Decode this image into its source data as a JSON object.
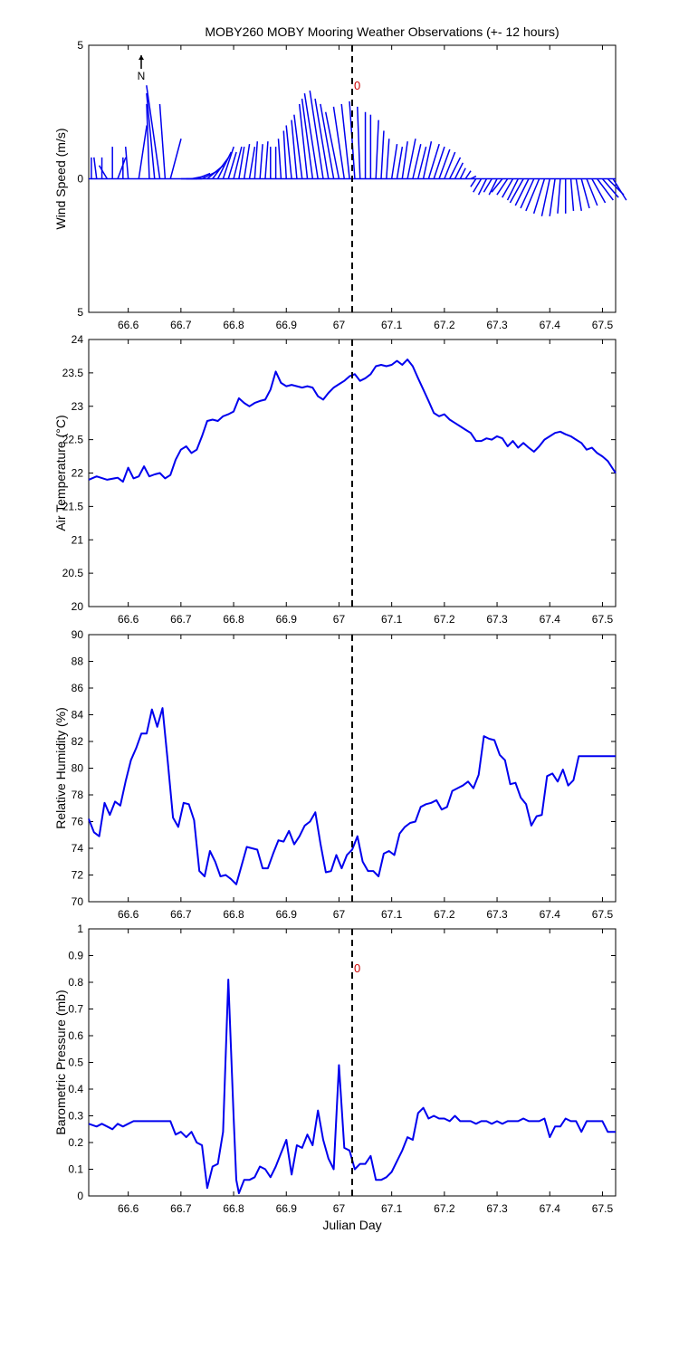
{
  "title": "MOBY260 MOBY Mooring Weather Observations (+- 12 hours)",
  "colors": {
    "line": "#0000ee",
    "marker": "#cc0000",
    "axis": "#000000"
  },
  "chart_data": [
    {
      "type": "line",
      "ylabel": "Wind Speed (m/s)",
      "xlim": [
        66.525,
        67.525
      ],
      "ylim": [
        -5,
        5
      ],
      "y_tick_labels": [
        "5",
        "0",
        "5"
      ],
      "x_ticks": [
        66.6,
        66.7,
        66.8,
        66.9,
        67,
        67.1,
        67.2,
        67.3,
        67.4,
        67.5
      ],
      "north_label": "N",
      "marker_label": "0",
      "marker_x": 67.025,
      "series": [
        {
          "x": [
            66.53,
            66.54,
            66.55,
            66.56,
            66.57,
            66.58,
            66.59,
            66.6,
            66.61,
            66.62,
            66.63,
            66.64,
            66.65,
            66.66,
            66.67,
            66.68,
            66.69,
            66.7,
            66.71,
            66.72,
            66.73,
            66.74,
            66.75,
            66.76,
            66.77,
            66.78,
            66.79,
            66.8,
            66.81,
            66.82,
            66.83,
            66.84,
            66.85,
            66.86,
            66.87,
            66.88,
            66.89,
            66.9,
            66.91,
            66.92,
            66.93,
            66.94,
            66.95,
            66.96,
            66.97,
            66.98,
            66.99,
            67.0,
            67.01,
            67.02,
            67.03,
            67.04,
            67.05,
            67.06,
            67.07,
            67.08,
            67.09,
            67.1,
            67.11,
            67.12,
            67.13,
            67.14,
            67.15,
            67.16,
            67.17,
            67.18,
            67.19,
            67.2,
            67.21,
            67.22,
            67.23,
            67.24,
            67.25,
            67.26,
            67.27,
            67.28,
            67.29,
            67.3,
            67.31,
            67.32,
            67.33,
            67.34,
            67.35,
            67.36,
            67.37,
            67.38,
            67.39,
            67.4,
            67.41,
            67.42,
            67.43,
            67.44,
            67.45,
            67.46,
            67.47,
            67.48,
            67.49,
            67.5,
            67.51,
            67.52
          ],
          "u": [
            0.0,
            -0.1,
            0.0,
            -0.3,
            0.0,
            0.3,
            0.0,
            -0.1,
            0.0,
            0.3,
            0.0,
            -0.1,
            -0.3,
            -0.5,
            -0.2,
            0.4,
            0.0,
            0.6,
            0.6,
            0.5,
            0.5,
            0.6,
            0.6,
            0.6,
            0.5,
            0.4,
            0.3,
            0.3,
            0.2,
            0.2,
            0.2,
            0.1,
            0.1,
            0.1,
            0.0,
            0.0,
            -0.1,
            -0.1,
            -0.2,
            -0.2,
            -0.3,
            -0.3,
            -0.4,
            -0.5,
            -0.5,
            -0.5,
            -0.5,
            -0.5,
            -0.4,
            -0.3,
            -0.2,
            -0.1,
            0.0,
            0.0,
            0.1,
            0.1,
            0.1,
            0.2,
            0.2,
            0.2,
            0.3,
            0.3,
            0.3,
            0.3,
            0.4,
            0.4,
            0.4,
            0.4,
            0.4,
            0.3,
            0.2,
            0.2,
            0.2,
            -0.2,
            -0.3,
            -0.3,
            -0.3,
            -0.3,
            -0.4,
            -0.4,
            -0.4,
            -0.4,
            -0.5,
            -0.5,
            -0.5,
            -0.5,
            -0.4,
            -0.3,
            -0.2,
            -0.1,
            0.0,
            0.1,
            0.2,
            0.3,
            0.4,
            0.5,
            0.6,
            0.6,
            0.6,
            0.5
          ],
          "v": [
            0.8,
            0.8,
            0.8,
            0.5,
            1.2,
            0.8,
            0.8,
            1.2,
            0.0,
            2.0,
            0.0,
            2.8,
            3.2,
            3.5,
            2.8,
            1.5,
            0.0,
            0.0,
            0.0,
            0.1,
            0.2,
            0.3,
            0.5,
            0.8,
            1.0,
            1.2,
            1.0,
            1.2,
            1.2,
            1.3,
            1.2,
            1.4,
            1.3,
            1.4,
            1.2,
            1.2,
            1.5,
            1.8,
            2.0,
            2.2,
            2.4,
            2.8,
            3.0,
            3.2,
            3.3,
            3.0,
            2.8,
            2.5,
            2.7,
            2.8,
            2.9,
            2.7,
            2.5,
            2.4,
            2.2,
            1.8,
            1.5,
            1.3,
            1.2,
            1.4,
            1.5,
            1.3,
            1.2,
            1.4,
            1.3,
            1.2,
            1.1,
            1.0,
            0.8,
            0.6,
            0.4,
            0.3,
            0.1,
            -0.3,
            -0.5,
            -0.6,
            -0.5,
            -0.6,
            -0.5,
            -0.6,
            -0.7,
            -0.8,
            -0.9,
            -1.0,
            -1.1,
            -1.2,
            -1.3,
            -1.4,
            -1.4,
            -1.3,
            -1.3,
            -1.2,
            -1.2,
            -1.1,
            -1.0,
            -0.9,
            -0.8,
            -0.7,
            -0.6,
            -0.8
          ]
        }
      ]
    },
    {
      "type": "line",
      "ylabel": "Air Temperature (°C)",
      "xlim": [
        66.525,
        67.525
      ],
      "ylim": [
        20,
        24
      ],
      "y_ticks": [
        "20",
        "20.5",
        "21",
        "21.5",
        "22",
        "22.5",
        "23",
        "23.5",
        "24"
      ],
      "x_ticks": [
        66.6,
        66.7,
        66.8,
        66.9,
        67,
        67.1,
        67.2,
        67.3,
        67.4,
        67.5
      ],
      "marker_x": 67.025,
      "series": [
        {
          "x": [
            66.525,
            66.54,
            66.56,
            66.58,
            66.59,
            66.6,
            66.61,
            66.62,
            66.63,
            66.64,
            66.65,
            66.66,
            66.67,
            66.68,
            66.69,
            66.7,
            66.71,
            66.72,
            66.73,
            66.74,
            66.75,
            66.76,
            66.77,
            66.78,
            66.79,
            66.8,
            66.81,
            66.82,
            66.83,
            66.84,
            66.85,
            66.86,
            66.87,
            66.88,
            66.89,
            66.9,
            66.91,
            66.92,
            66.93,
            66.94,
            66.95,
            66.96,
            66.97,
            66.98,
            66.99,
            67.0,
            67.01,
            67.02,
            67.03,
            67.04,
            67.05,
            67.06,
            67.07,
            67.08,
            67.09,
            67.1,
            67.11,
            67.12,
            67.13,
            67.14,
            67.15,
            67.16,
            67.17,
            67.18,
            67.19,
            67.2,
            67.21,
            67.22,
            67.23,
            67.24,
            67.25,
            67.26,
            67.27,
            67.28,
            67.29,
            67.3,
            67.31,
            67.32,
            67.33,
            67.34,
            67.35,
            67.36,
            67.37,
            67.38,
            67.39,
            67.4,
            67.41,
            67.42,
            67.43,
            67.44,
            67.45,
            67.46,
            67.47,
            67.48,
            67.49,
            67.5,
            67.51,
            67.525
          ],
          "y": [
            21.9,
            21.95,
            21.9,
            21.93,
            21.87,
            22.08,
            21.92,
            21.95,
            22.1,
            21.95,
            21.98,
            22.0,
            21.92,
            21.97,
            22.2,
            22.35,
            22.4,
            22.3,
            22.35,
            22.55,
            22.78,
            22.8,
            22.78,
            22.85,
            22.88,
            22.92,
            23.12,
            23.05,
            23.0,
            23.05,
            23.08,
            23.1,
            23.25,
            23.52,
            23.35,
            23.3,
            23.32,
            23.3,
            23.28,
            23.3,
            23.28,
            23.15,
            23.1,
            23.2,
            23.28,
            23.33,
            23.38,
            23.45,
            23.48,
            23.38,
            23.42,
            23.48,
            23.6,
            23.62,
            23.6,
            23.62,
            23.68,
            23.62,
            23.7,
            23.6,
            23.42,
            23.25,
            23.08,
            22.9,
            22.85,
            22.88,
            22.8,
            22.75,
            22.7,
            22.65,
            22.6,
            22.48,
            22.48,
            22.52,
            22.5,
            22.55,
            22.52,
            22.4,
            22.48,
            22.38,
            22.45,
            22.38,
            22.32,
            22.4,
            22.5,
            22.55,
            22.6,
            22.62,
            22.58,
            22.55,
            22.5,
            22.45,
            22.35,
            22.38,
            22.3,
            22.25,
            22.18,
            22.0
          ]
        }
      ]
    },
    {
      "type": "line",
      "ylabel": "Relative Humidity (%)",
      "xlim": [
        66.525,
        67.525
      ],
      "ylim": [
        70,
        90
      ],
      "y_ticks": [
        "70",
        "72",
        "74",
        "76",
        "78",
        "80",
        "82",
        "84",
        "86",
        "88",
        "90"
      ],
      "x_ticks": [
        66.6,
        66.7,
        66.8,
        66.9,
        67,
        67.1,
        67.2,
        67.3,
        67.4,
        67.5
      ],
      "marker_x": 67.025,
      "series": [
        {
          "x": [
            66.525,
            66.535,
            66.545,
            66.555,
            66.565,
            66.575,
            66.585,
            66.595,
            66.605,
            66.615,
            66.625,
            66.635,
            66.645,
            66.655,
            66.665,
            66.675,
            66.685,
            66.695,
            66.705,
            66.715,
            66.725,
            66.735,
            66.745,
            66.755,
            66.765,
            66.775,
            66.785,
            66.795,
            66.805,
            66.815,
            66.825,
            66.835,
            66.845,
            66.855,
            66.865,
            66.875,
            66.885,
            66.895,
            66.905,
            66.915,
            66.925,
            66.935,
            66.945,
            66.955,
            66.965,
            66.975,
            66.985,
            66.995,
            67.005,
            67.015,
            67.025,
            67.035,
            67.045,
            67.055,
            67.065,
            67.075,
            67.085,
            67.095,
            67.105,
            67.115,
            67.125,
            67.135,
            67.145,
            67.155,
            67.165,
            67.175,
            67.185,
            67.195,
            67.205,
            67.215,
            67.225,
            67.235,
            67.245,
            67.255,
            67.265,
            67.275,
            67.285,
            67.295,
            67.305,
            67.315,
            67.325,
            67.335,
            67.345,
            67.355,
            67.365,
            67.375,
            67.385,
            67.395,
            67.405,
            67.415,
            67.425,
            67.435,
            67.445,
            67.455,
            67.465,
            67.475,
            67.485,
            67.495,
            67.505,
            67.515,
            67.525
          ],
          "y": [
            76.2,
            75.2,
            74.9,
            77.4,
            76.5,
            77.5,
            77.2,
            79.0,
            80.6,
            81.5,
            82.6,
            82.6,
            84.4,
            83.1,
            84.5,
            80.5,
            76.3,
            75.6,
            77.4,
            77.3,
            76.1,
            72.3,
            71.9,
            73.8,
            73.0,
            71.9,
            72.0,
            71.7,
            71.3,
            72.7,
            74.1,
            74.0,
            73.9,
            72.5,
            72.5,
            73.6,
            74.6,
            74.5,
            75.3,
            74.3,
            74.9,
            75.7,
            76.0,
            76.7,
            74.3,
            72.2,
            72.3,
            73.5,
            72.5,
            73.5,
            73.9,
            74.9,
            73.0,
            72.3,
            72.3,
            71.9,
            73.6,
            73.8,
            73.5,
            75.1,
            75.6,
            75.9,
            76.0,
            77.1,
            77.3,
            77.4,
            77.6,
            76.9,
            77.1,
            78.3,
            78.5,
            78.7,
            79.0,
            78.5,
            79.5,
            82.4,
            82.2,
            82.1,
            81.0,
            80.6,
            78.8,
            78.9,
            77.8,
            77.3,
            75.7,
            76.4,
            76.5,
            79.4,
            79.6,
            79.0,
            79.9,
            78.7,
            79.1,
            80.9,
            80.9,
            80.9,
            80.9,
            80.9,
            80.9,
            80.9,
            80.9
          ]
        }
      ]
    },
    {
      "type": "line",
      "ylabel": "Barometric Pressure (mb)",
      "xlabel": "Julian Day",
      "xlim": [
        66.525,
        67.525
      ],
      "ylim": [
        0,
        1
      ],
      "y_ticks": [
        "0",
        "0.1",
        "0.2",
        "0.3",
        "0.4",
        "0.5",
        "0.6",
        "0.7",
        "0.8",
        "0.9",
        "1"
      ],
      "x_ticks": [
        66.6,
        66.7,
        66.8,
        66.9,
        67,
        67.1,
        67.2,
        67.3,
        67.4,
        67.5
      ],
      "marker_label": "0",
      "marker_x": 67.025,
      "series": [
        {
          "x": [
            66.525,
            66.54,
            66.55,
            66.56,
            66.57,
            66.58,
            66.59,
            66.6,
            66.61,
            66.62,
            66.63,
            66.64,
            66.65,
            66.66,
            66.67,
            66.68,
            66.69,
            66.7,
            66.71,
            66.72,
            66.73,
            66.74,
            66.75,
            66.76,
            66.77,
            66.78,
            66.79,
            66.8,
            66.805,
            66.81,
            66.82,
            66.83,
            66.84,
            66.85,
            66.86,
            66.87,
            66.88,
            66.89,
            66.9,
            66.91,
            66.92,
            66.93,
            66.94,
            66.95,
            66.96,
            66.97,
            66.98,
            66.99,
            67.0,
            67.01,
            67.02,
            67.03,
            67.04,
            67.05,
            67.06,
            67.07,
            67.08,
            67.09,
            67.1,
            67.12,
            67.13,
            67.14,
            67.15,
            67.16,
            67.17,
            67.18,
            67.19,
            67.2,
            67.21,
            67.22,
            67.23,
            67.24,
            67.25,
            67.26,
            67.27,
            67.28,
            67.29,
            67.3,
            67.31,
            67.32,
            67.33,
            67.34,
            67.35,
            67.36,
            67.37,
            67.38,
            67.39,
            67.4,
            67.41,
            67.42,
            67.43,
            67.44,
            67.45,
            67.46,
            67.47,
            67.48,
            67.49,
            67.5,
            67.51,
            67.525
          ],
          "y": [
            0.27,
            0.26,
            0.27,
            0.26,
            0.25,
            0.27,
            0.26,
            0.27,
            0.28,
            0.28,
            0.28,
            0.28,
            0.28,
            0.28,
            0.28,
            0.28,
            0.23,
            0.24,
            0.22,
            0.24,
            0.2,
            0.19,
            0.03,
            0.11,
            0.12,
            0.24,
            0.81,
            0.3,
            0.06,
            0.01,
            0.06,
            0.06,
            0.07,
            0.11,
            0.1,
            0.07,
            0.11,
            0.16,
            0.21,
            0.08,
            0.19,
            0.18,
            0.23,
            0.19,
            0.32,
            0.21,
            0.14,
            0.1,
            0.49,
            0.18,
            0.17,
            0.1,
            0.12,
            0.12,
            0.15,
            0.06,
            0.06,
            0.07,
            0.09,
            0.17,
            0.22,
            0.21,
            0.31,
            0.33,
            0.29,
            0.3,
            0.29,
            0.29,
            0.28,
            0.3,
            0.28,
            0.28,
            0.28,
            0.27,
            0.28,
            0.28,
            0.27,
            0.28,
            0.27,
            0.28,
            0.28,
            0.28,
            0.29,
            0.28,
            0.28,
            0.28,
            0.29,
            0.22,
            0.26,
            0.26,
            0.29,
            0.28,
            0.28,
            0.24,
            0.28,
            0.28,
            0.28,
            0.28,
            0.24,
            0.24
          ]
        }
      ]
    }
  ]
}
